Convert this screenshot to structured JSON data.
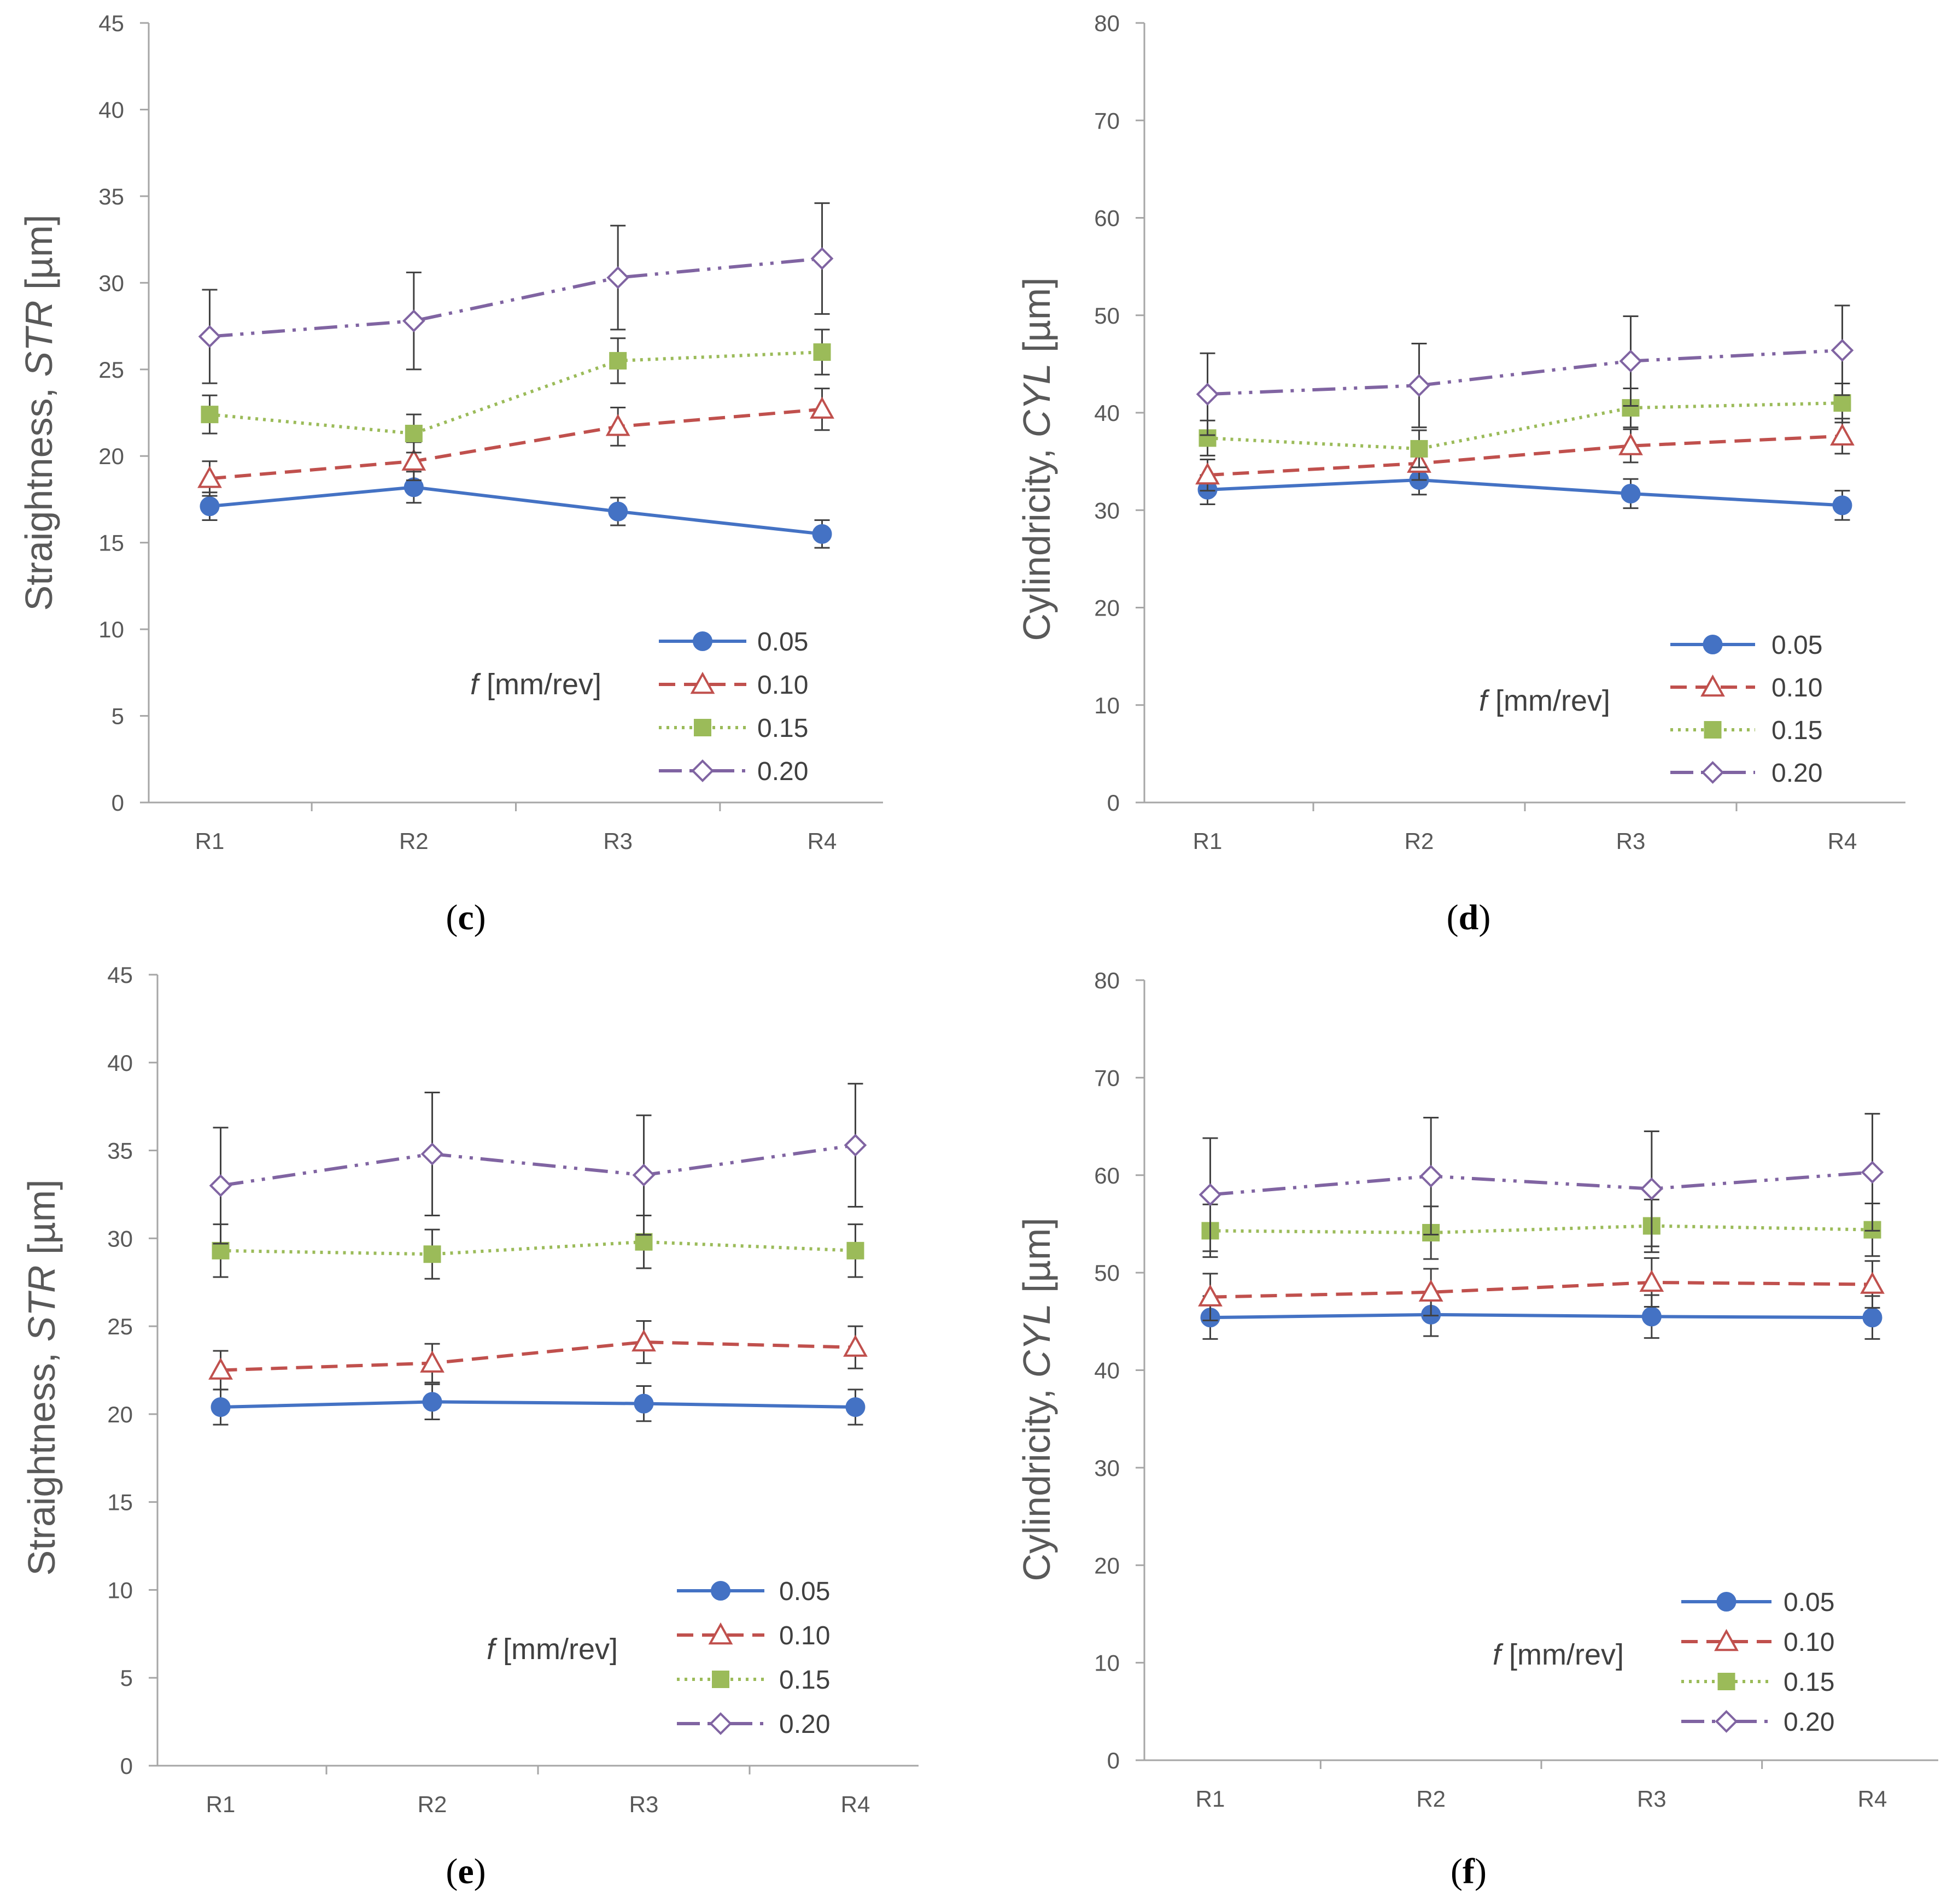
{
  "captions": [
    "(c)",
    "(d)",
    "(e)",
    "(f)"
  ],
  "legend_title_prefix": "f",
  "legend_title_suffix": " [mm/rev]",
  "chart_data": [
    {
      "id": "c",
      "type": "line",
      "caption": "(c)",
      "ylabel_prefix": "Straightness, ",
      "ylabel_italic": "STR",
      "ylabel_suffix": " [µm]",
      "ylim": [
        0,
        45
      ],
      "ystep": 5,
      "categories": [
        "R1",
        "R2",
        "R3",
        "R4"
      ],
      "legend_title": "f [mm/rev]",
      "legend_position": "bottom-right",
      "series": [
        {
          "name": "0.05",
          "values": [
            17.1,
            18.2,
            16.8,
            15.5
          ],
          "errors": [
            0.8,
            0.9,
            0.8,
            0.8
          ],
          "color": "#4472C4",
          "marker": "circle-filled",
          "dash": "solid"
        },
        {
          "name": "0.10",
          "values": [
            18.7,
            19.7,
            21.7,
            22.7
          ],
          "errors": [
            1.0,
            1.1,
            1.1,
            1.2
          ],
          "color": "#C0504D",
          "marker": "triangle-open",
          "dash": "dashed"
        },
        {
          "name": "0.15",
          "values": [
            22.4,
            21.3,
            25.5,
            26.0
          ],
          "errors": [
            1.1,
            1.1,
            1.3,
            1.3
          ],
          "color": "#9BBB59",
          "marker": "square-filled",
          "dash": "dotted"
        },
        {
          "name": "0.20",
          "values": [
            26.9,
            27.8,
            30.3,
            31.4
          ],
          "errors": [
            2.7,
            2.8,
            3.0,
            3.2
          ],
          "color": "#8064A2",
          "marker": "diamond-open",
          "dash": "dash-dot-dot"
        }
      ]
    },
    {
      "id": "d",
      "type": "line",
      "caption": "(d)",
      "ylabel_prefix": "Cylindricity, ",
      "ylabel_italic": "CYL",
      "ylabel_suffix": " [µm]",
      "ylim": [
        0,
        80
      ],
      "ystep": 10,
      "categories": [
        "R1",
        "R2",
        "R3",
        "R4"
      ],
      "legend_title": "f [mm/rev]",
      "legend_position": "bottom-right",
      "series": [
        {
          "name": "0.05",
          "values": [
            32.1,
            33.1,
            31.7,
            30.5
          ],
          "errors": [
            1.5,
            1.5,
            1.5,
            1.5
          ],
          "color": "#4472C4",
          "marker": "circle-filled",
          "dash": "solid"
        },
        {
          "name": "0.10",
          "values": [
            33.6,
            34.8,
            36.6,
            37.6
          ],
          "errors": [
            1.6,
            1.7,
            1.7,
            1.8
          ],
          "color": "#C0504D",
          "marker": "triangle-open",
          "dash": "dashed"
        },
        {
          "name": "0.15",
          "values": [
            37.4,
            36.3,
            40.5,
            41.0
          ],
          "errors": [
            1.8,
            1.9,
            2.0,
            2.0
          ],
          "color": "#9BBB59",
          "marker": "square-filled",
          "dash": "dotted"
        },
        {
          "name": "0.20",
          "values": [
            41.9,
            42.8,
            45.3,
            46.4
          ],
          "errors": [
            4.2,
            4.3,
            4.6,
            4.6
          ],
          "color": "#8064A2",
          "marker": "diamond-open",
          "dash": "dash-dot-dot"
        }
      ]
    },
    {
      "id": "e",
      "type": "line",
      "caption": "(e)",
      "ylabel_prefix": "Straightness, ",
      "ylabel_italic": "STR",
      "ylabel_suffix": " [µm]",
      "ylim": [
        0,
        45
      ],
      "ystep": 5,
      "categories": [
        "R1",
        "R2",
        "R3",
        "R4"
      ],
      "legend_title": "f [mm/rev]",
      "legend_position": "bottom-right",
      "series": [
        {
          "name": "0.05",
          "values": [
            20.4,
            20.7,
            20.6,
            20.4
          ],
          "errors": [
            1.0,
            1.0,
            1.0,
            1.0
          ],
          "color": "#4472C4",
          "marker": "circle-filled",
          "dash": "solid"
        },
        {
          "name": "0.10",
          "values": [
            22.5,
            22.9,
            24.1,
            23.8
          ],
          "errors": [
            1.1,
            1.1,
            1.2,
            1.2
          ],
          "color": "#C0504D",
          "marker": "triangle-open",
          "dash": "dashed"
        },
        {
          "name": "0.15",
          "values": [
            29.3,
            29.1,
            29.8,
            29.3
          ],
          "errors": [
            1.5,
            1.4,
            1.5,
            1.5
          ],
          "color": "#9BBB59",
          "marker": "square-filled",
          "dash": "dotted"
        },
        {
          "name": "0.20",
          "values": [
            33.0,
            34.8,
            33.6,
            35.3
          ],
          "errors": [
            3.3,
            3.5,
            3.4,
            3.5
          ],
          "color": "#8064A2",
          "marker": "diamond-open",
          "dash": "dash-dot-dot"
        }
      ]
    },
    {
      "id": "f",
      "type": "line",
      "caption": "(f)",
      "ylabel_prefix": "Cylindricity, ",
      "ylabel_italic": "CYL",
      "ylabel_suffix": " [µm]",
      "ylim": [
        0,
        80
      ],
      "ystep": 10,
      "categories": [
        "R1",
        "R2",
        "R3",
        "R4"
      ],
      "legend_title": "f [mm/rev]",
      "legend_position": "bottom-right",
      "series": [
        {
          "name": "0.05",
          "values": [
            45.4,
            45.7,
            45.5,
            45.4
          ],
          "errors": [
            2.2,
            2.2,
            2.2,
            2.2
          ],
          "color": "#4472C4",
          "marker": "circle-filled",
          "dash": "solid"
        },
        {
          "name": "0.10",
          "values": [
            47.5,
            48.0,
            49.0,
            48.8
          ],
          "errors": [
            2.4,
            2.4,
            2.5,
            2.4
          ],
          "color": "#C0504D",
          "marker": "triangle-open",
          "dash": "dashed"
        },
        {
          "name": "0.15",
          "values": [
            54.3,
            54.1,
            54.8,
            54.4
          ],
          "errors": [
            2.7,
            2.7,
            2.7,
            2.7
          ],
          "color": "#9BBB59",
          "marker": "square-filled",
          "dash": "dotted"
        },
        {
          "name": "0.20",
          "values": [
            58.0,
            59.9,
            58.6,
            60.3
          ],
          "errors": [
            5.8,
            6.0,
            5.9,
            6.0
          ],
          "color": "#8064A2",
          "marker": "diamond-open",
          "dash": "dash-dot-dot"
        }
      ]
    }
  ]
}
